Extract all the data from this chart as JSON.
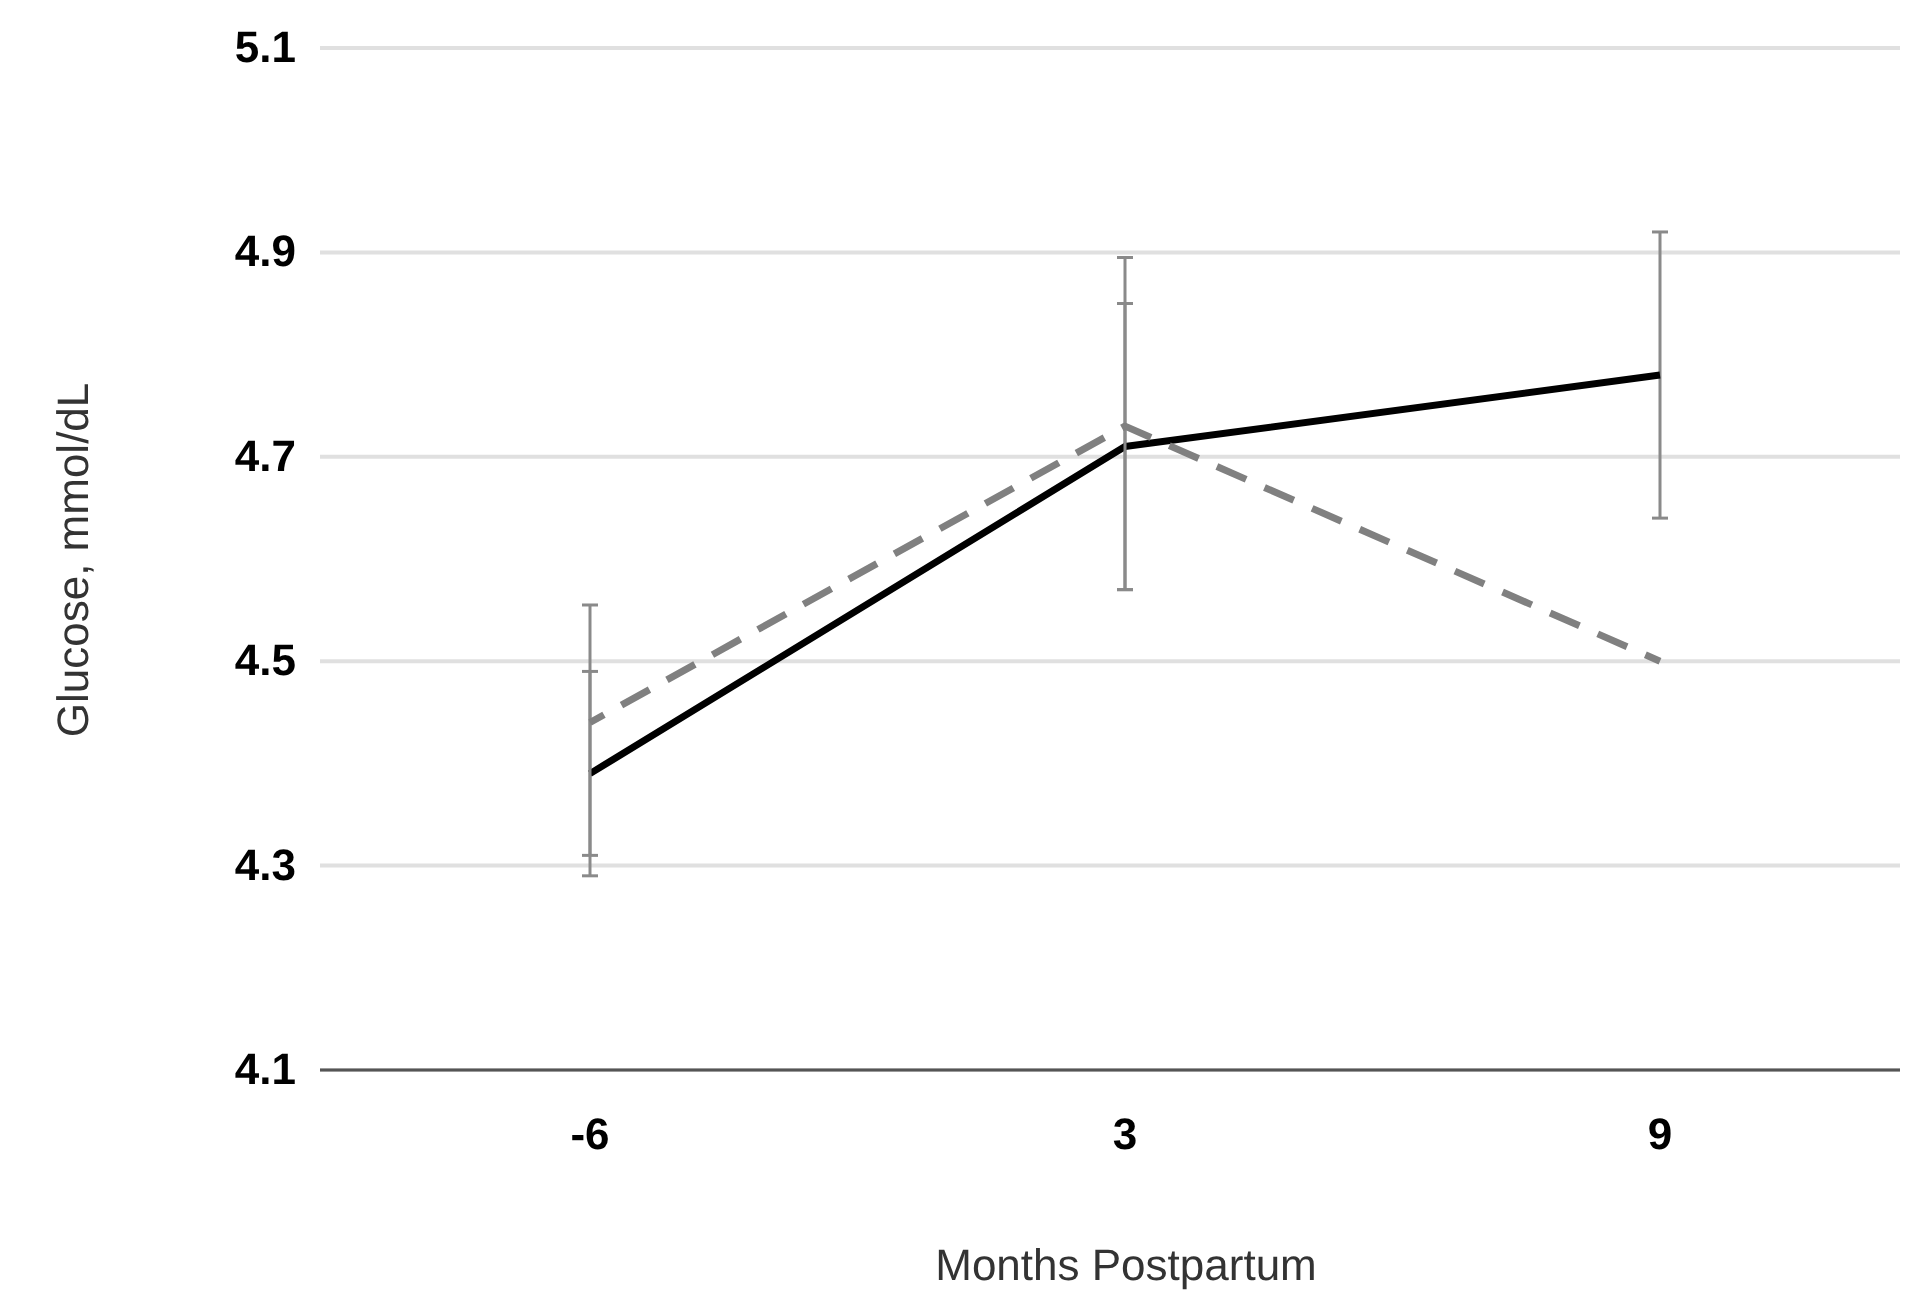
{
  "chart_data": {
    "type": "line",
    "xlabel": "Months Postpartum",
    "ylabel": "Glucose, mmol/dL",
    "categories": [
      "-6",
      "3",
      "9"
    ],
    "series": [
      {
        "color": "#000000",
        "line_style": "solid",
        "values": [
          4.39,
          4.71,
          4.78
        ],
        "errors": [
          [
            4.29,
            4.49
          ],
          [
            4.57,
            4.85
          ],
          [
            4.64,
            4.92
          ]
        ]
      },
      {
        "color": "#808080",
        "line_style": "dashed",
        "values": [
          4.44,
          4.73,
          4.5
        ],
        "errors": [
          [
            4.31,
            4.555
          ],
          [
            4.57,
            4.895
          ],
          null
        ]
      }
    ],
    "ylim": [
      4.1,
      5.1
    ],
    "yticks": [
      4.1,
      4.3,
      4.5,
      4.7,
      4.9,
      5.1
    ],
    "grid": "y",
    "marker": "none"
  }
}
